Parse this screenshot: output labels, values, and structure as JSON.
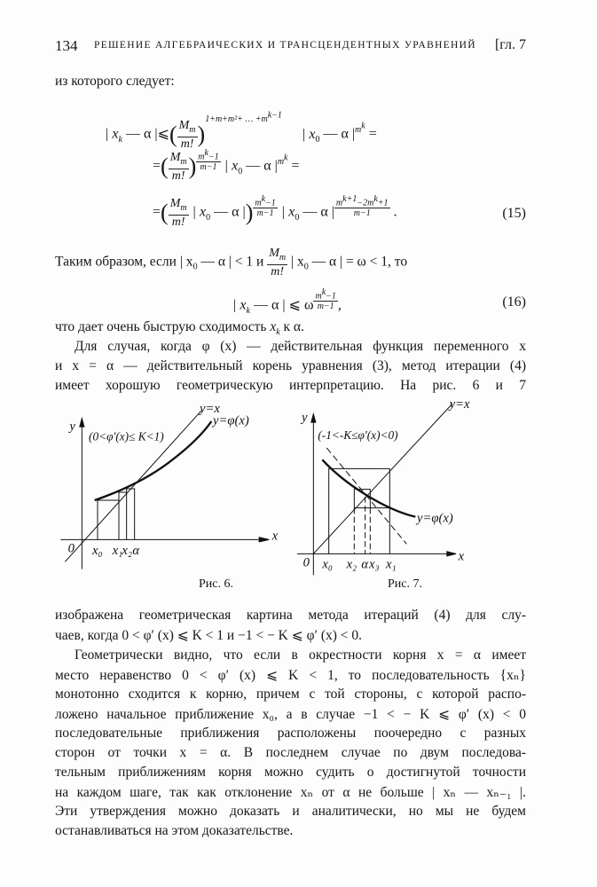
{
  "header": {
    "page_number": "134",
    "running_title": "РЕШЕНИЕ АЛГЕБРАИЧЕСКИХ И ТРАНСЦЕНДЕНТНЫХ УРАВНЕНИЙ",
    "chapter": "[гл. 7"
  },
  "intro": "из которого следует:",
  "eq15": {
    "l1_left": "| x",
    "l1_sub": "k",
    "l1_rest": " — α |⩽",
    "M": "M",
    "m_sub": "m",
    "mfact": "m!",
    "exp1": "1+m+m²+ … +m",
    "exp1_sup": "k−1",
    "l1_right": "| x",
    "zero": "0",
    "l1_tail": " — α |",
    "mk": "m",
    "k": "k",
    "eqsign": " =",
    "exp_num": "m",
    "exp_num_sup": "k",
    "exp_num_tail": "−1",
    "exp_den": "m−1",
    "exp3_num": "m",
    "exp3_sup1": "k+1",
    "exp3_mid": "−2m",
    "exp3_sup2": "k",
    "exp3_tail": "+1",
    "number": "(15)"
  },
  "para1": {
    "text1": "Таким образом, если | x",
    "sub0": "0",
    "text2": " — α | < 1 и ",
    "text3": " | x",
    "text4": " — α | = ω < 1, то"
  },
  "eq16": {
    "left": "| x",
    "sub": "k",
    "rest": " — α | ⩽ ω",
    "tail": ",",
    "number": "(16)"
  },
  "para2": {
    "text": "что дает очень быструю сходимость ",
    "xk": "x",
    "k": "k",
    "tail": " к α."
  },
  "para3": {
    "lines": [
      "Для случая, когда φ (x) — действительная функция переменного x",
      "и x = α — действительный корень уравнения (3), метод итерации (4)",
      "имеет хорошую геометрическую интерпретацию. На рис. 6 и 7"
    ]
  },
  "fig6": {
    "caption": "Рис. 6.",
    "y_label": "y",
    "x_label": "x",
    "origin": "0",
    "line_label": "y=x",
    "curve_label": "y=φ(x)",
    "condition": "(0<φ'(x)≤ K<1)",
    "ticks": [
      "x₀",
      "x₁",
      "x₂",
      "α"
    ]
  },
  "fig7": {
    "caption": "Рис. 7.",
    "y_label": "y",
    "x_label": "x",
    "origin": "0",
    "line_label": "y=x",
    "curve_label": "y=φ(x)",
    "condition": "(-1<-K≤φ'(x)<0)",
    "ticks": [
      "x₀",
      "x₂",
      "α",
      "x₃",
      "x₁"
    ]
  },
  "para4": {
    "lines": [
      "изображена геометрическая картина метода итераций (4) для слу-",
      "чаев, когда 0 < φ′ (x) ⩽ K < 1 и −1 < − K ⩽ φ′ (x) < 0."
    ]
  },
  "para5": {
    "lines": [
      "Геометрически видно, что если в окрестности корня x = α имеет",
      "место неравенство 0 < φ′ (x) ⩽ K < 1, то последовательность {xₙ}",
      "монотонно сходится к корню, причем с той стороны, с которой распо-",
      "ложено начальное приближение x₀, а в случае −1 < − K ⩽ φ′ (x) < 0",
      "последовательные приближения расположены поочередно с разных",
      "сторон от точки x = α. В последнем случае по двум последова-",
      "тельным приближениям корня можно судить о достигнутой точности",
      "на каждом шаге, так как отклонение xₙ от α не больше | xₙ — xₙ₋₁ |.",
      "Эти утверждения можно доказать и аналитически, но мы не будем",
      "останавливаться на этом доказательстве."
    ]
  }
}
